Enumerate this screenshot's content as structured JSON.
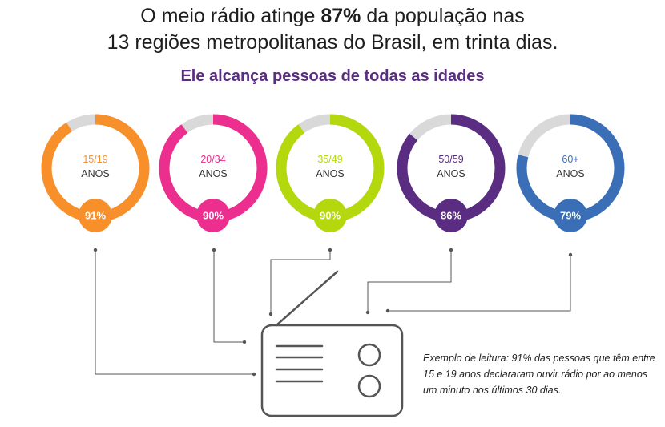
{
  "headline": {
    "prefix": "O meio rádio atinge ",
    "highlight": "87%",
    "suffix_line1": " da população nas",
    "line2": "13 regiões metropolitanas do Brasil, em trinta dias."
  },
  "subtitle": "Ele alcança pessoas de todas as idades",
  "chart_data": {
    "type": "donut",
    "unit": "%",
    "track_color": "#d9d9d9",
    "series": [
      {
        "label": "15/19",
        "sublabel": "ANOS",
        "value": 91,
        "display": "91%",
        "color": "#f7902b"
      },
      {
        "label": "20/34",
        "sublabel": "ANOS",
        "value": 90,
        "display": "90%",
        "color": "#ec2f8f"
      },
      {
        "label": "35/49",
        "sublabel": "ANOS",
        "value": 90,
        "display": "90%",
        "color": "#b3d80e"
      },
      {
        "label": "50/59",
        "sublabel": "ANOS",
        "value": 86,
        "display": "86%",
        "color": "#5a2d82"
      },
      {
        "label": "60+",
        "sublabel": "ANOS",
        "value": 79,
        "display": "79%",
        "color": "#3a6fb8"
      }
    ]
  },
  "note": "Exemplo de leitura: 91% das pessoas que têm entre 15 e 19 anos declararam ouvir rádio por ao menos um minuto nos últimos 30 dias."
}
